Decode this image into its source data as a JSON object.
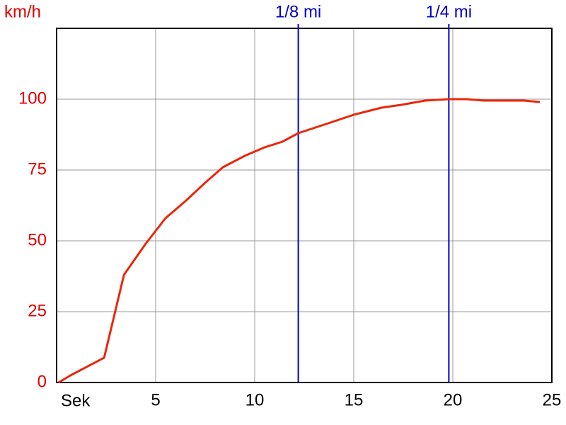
{
  "chart_data": {
    "type": "line",
    "y_label": "km/h",
    "x_label": "Sek",
    "x": [
      0.1,
      0.7,
      2.4,
      3.4,
      4.5,
      5.5,
      6.5,
      7.5,
      8.4,
      9.5,
      10.5,
      11.4,
      12.2,
      13.5,
      15,
      16.4,
      17.4,
      18.6,
      19.8,
      20.7,
      21.6,
      23.6,
      24.4
    ],
    "series": [
      {
        "color": "#e8280c",
        "values": [
          0,
          2.5,
          8.75,
          38,
          49,
          58,
          64,
          70.5,
          76,
          80,
          83,
          85,
          88,
          91,
          94.5,
          97,
          98,
          99.5,
          100,
          100,
          99.5,
          99.5,
          99
        ]
      }
    ],
    "xlim": [
      0,
      25
    ],
    "xticks": [
      5,
      10,
      15,
      20,
      25
    ],
    "ylim": [
      0,
      125
    ],
    "yticks": [
      0,
      25,
      50,
      75,
      100
    ],
    "grid": true,
    "markers": [
      {
        "label": "1/8 mi",
        "x": 12.2,
        "color": "#0000cc"
      },
      {
        "label": "1/4 mi",
        "x": 19.8,
        "color": "#0000cc"
      }
    ]
  }
}
